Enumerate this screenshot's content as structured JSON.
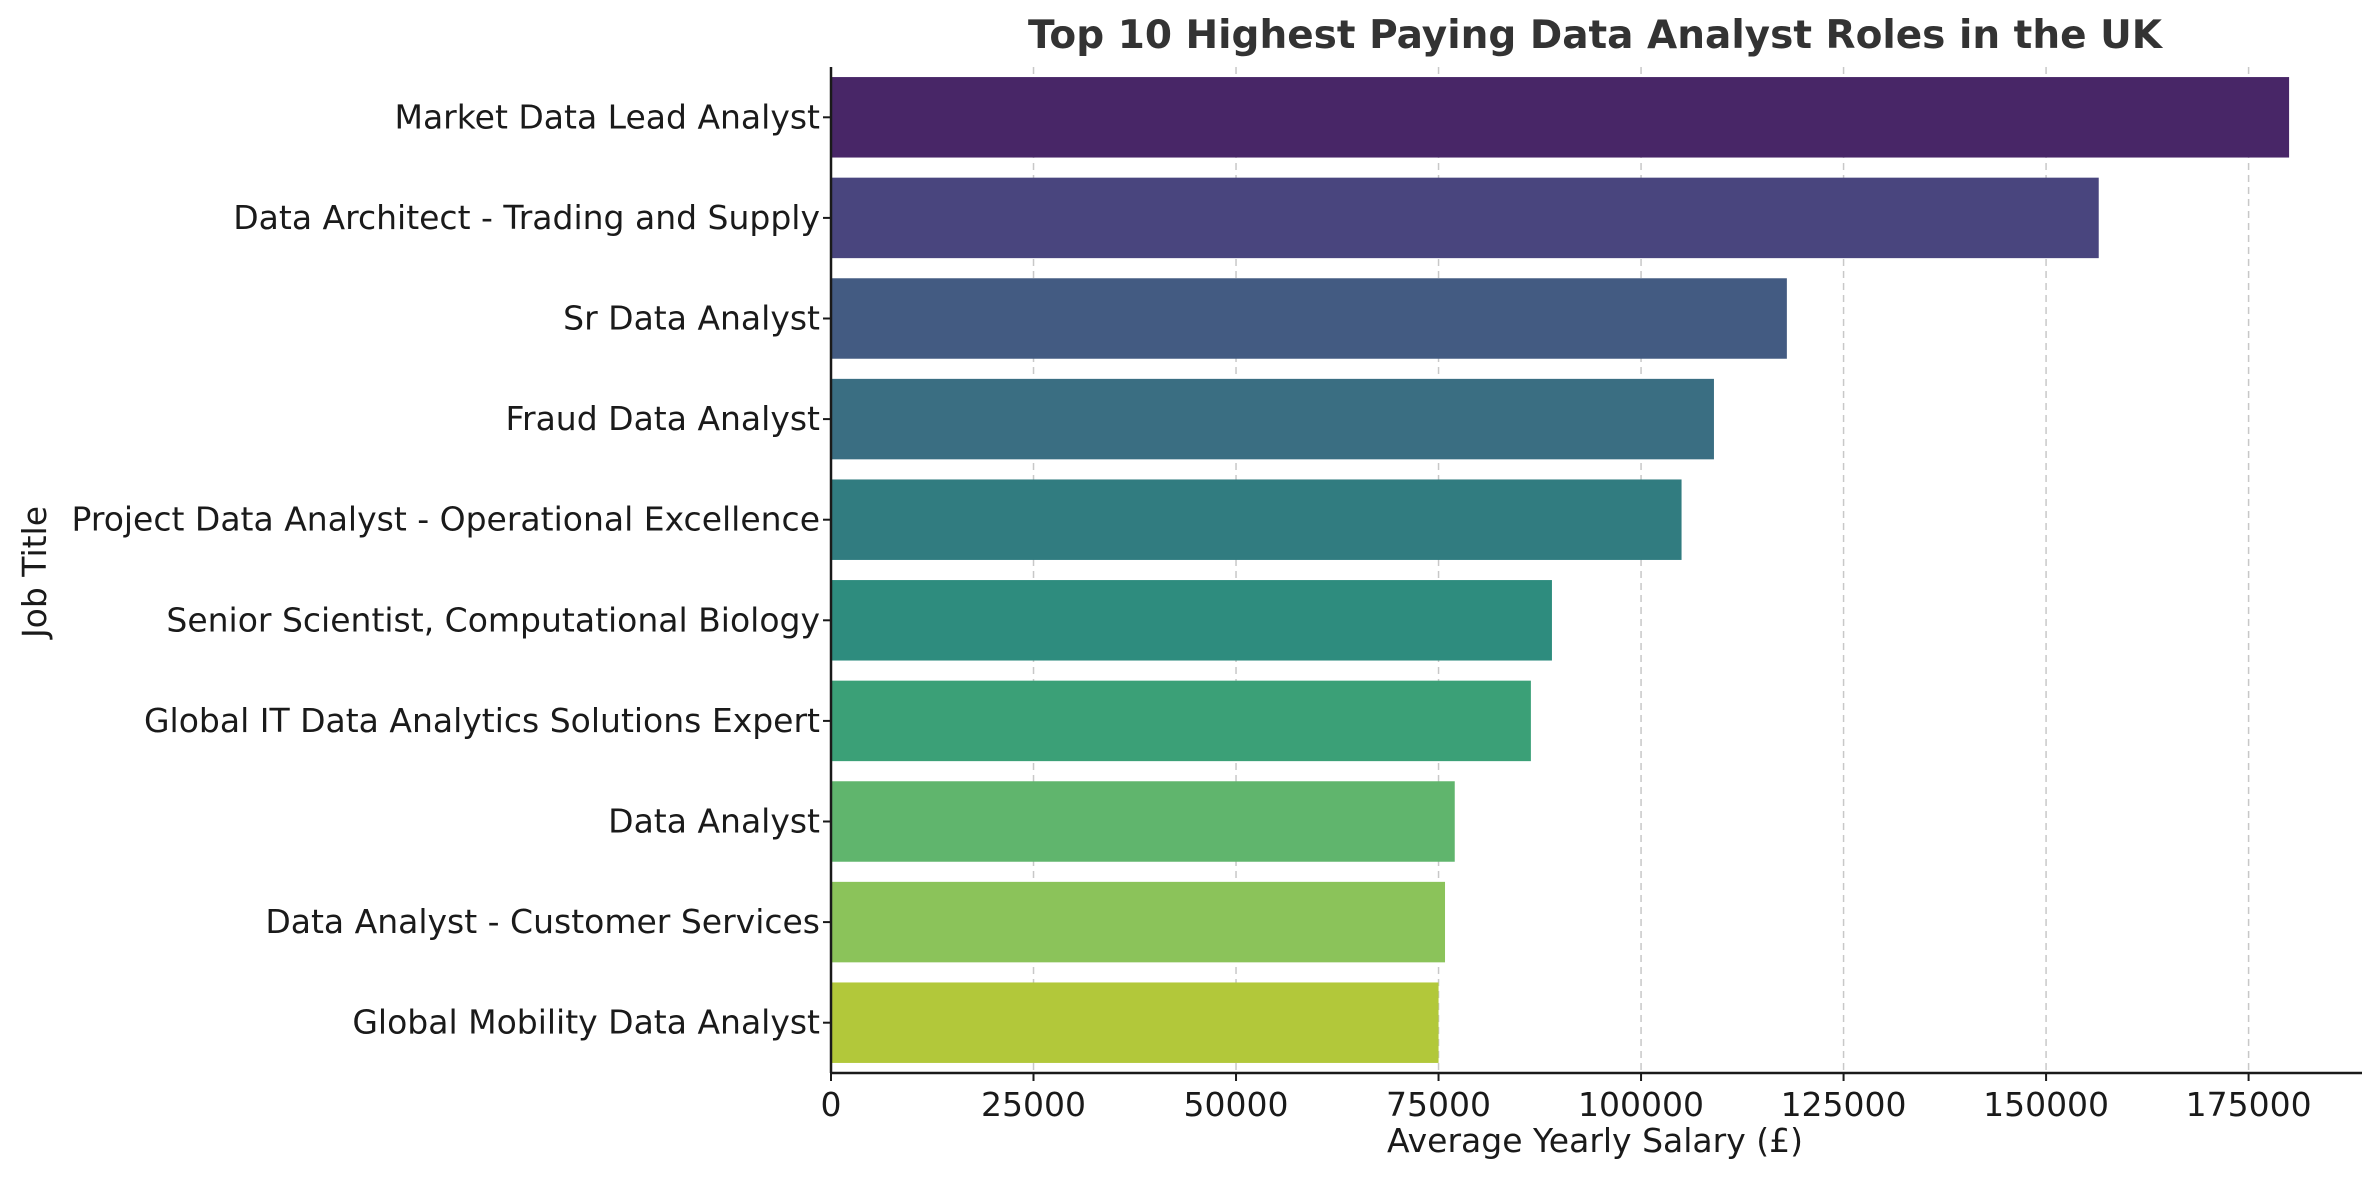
{
  "chart_data": {
    "type": "bar",
    "orientation": "horizontal",
    "title": "Top 10 Highest Paying Data Analyst Roles in the UK",
    "xlabel": "Average Yearly Salary (£)",
    "ylabel": "Job Title",
    "categories": [
      "Market Data Lead Analyst",
      "Data Architect - Trading and Supply",
      "Sr Data Analyst",
      "Fraud Data Analyst",
      "Project Data Analyst - Operational Excellence",
      "Senior Scientist, Computational Biology",
      "Global IT Data Analytics Solutions Expert",
      "Data Analyst",
      "Data Analyst - Customer Services",
      "Global Mobility Data Analyst"
    ],
    "values": [
      180000,
      156500,
      118000,
      109000,
      105000,
      89000,
      86400,
      77000,
      75800,
      75000
    ],
    "colors": [
      "#482667",
      "#49457e",
      "#435b82",
      "#3a6e82",
      "#317c80",
      "#2e8c7e",
      "#3ba077",
      "#60b56d",
      "#8bc35a",
      "#b2c83a"
    ],
    "xticks": [
      0,
      25000,
      50000,
      75000,
      100000,
      125000,
      150000,
      175000
    ],
    "xlim": [
      0,
      189000
    ],
    "grid": "x-dashed"
  }
}
